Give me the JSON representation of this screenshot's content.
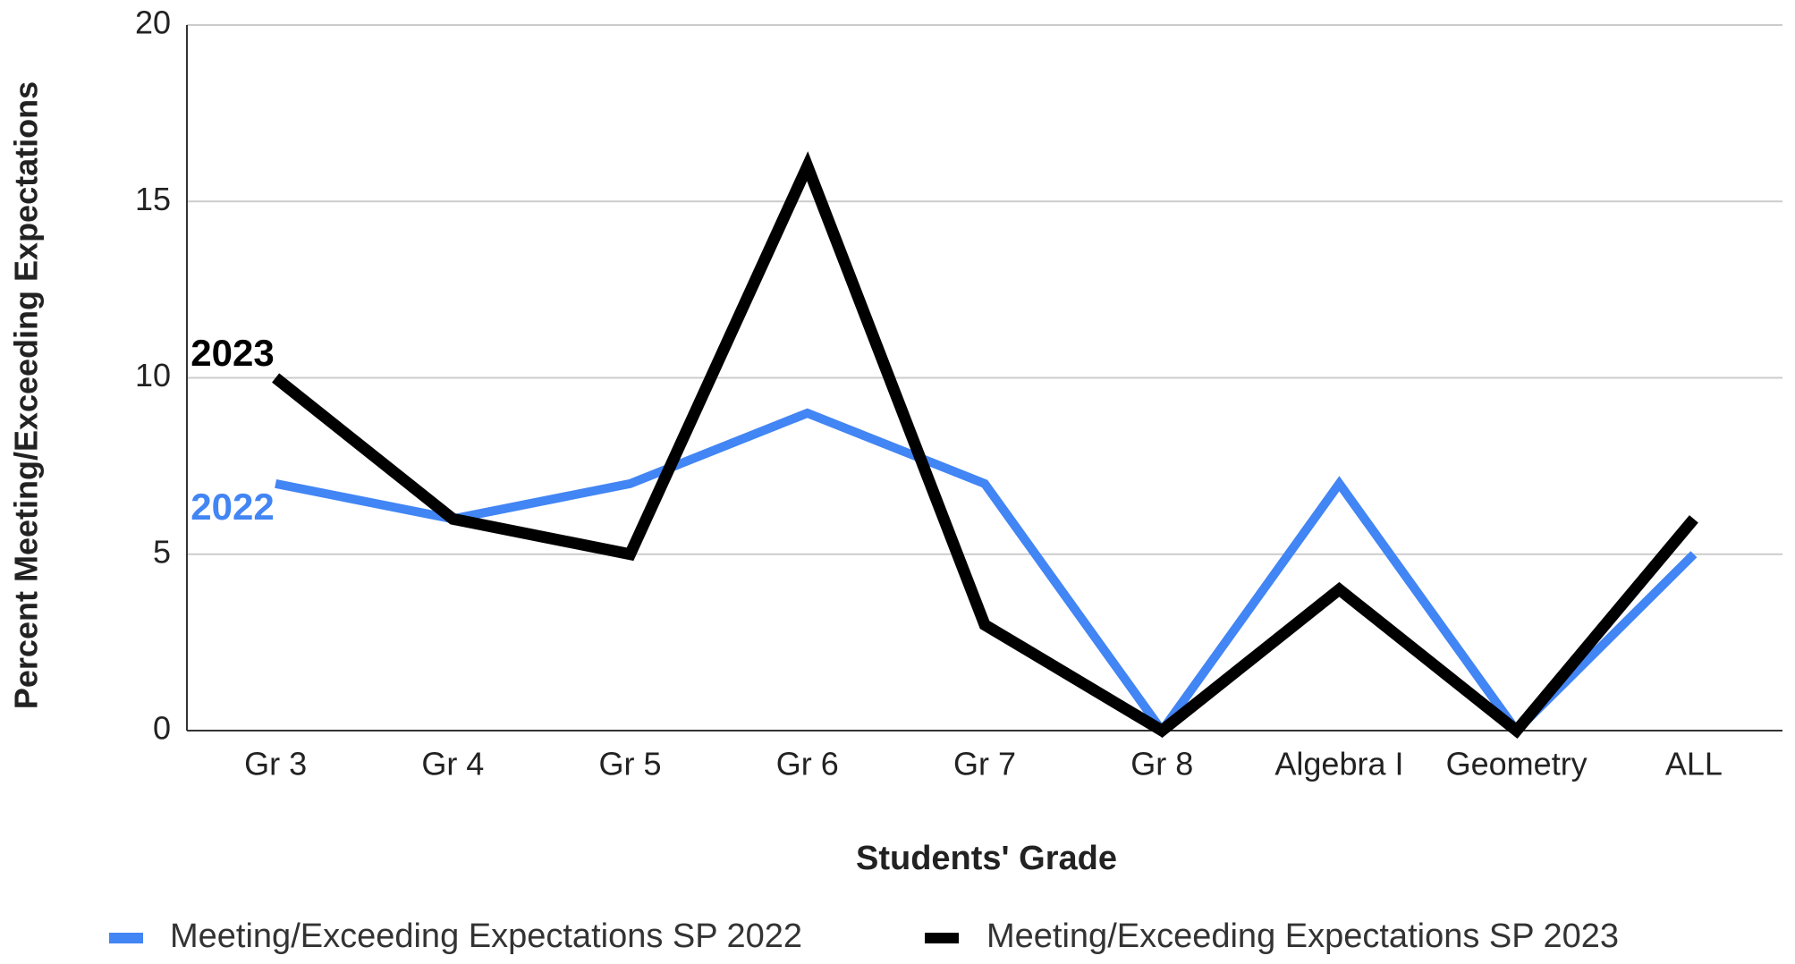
{
  "chart_data": {
    "type": "line",
    "x_label": "Students' Grade",
    "y_label": "Percent Meeting/Exceeding Expectations",
    "categories": [
      "Gr 3",
      "Gr 4",
      "Gr 5",
      "Gr 6",
      "Gr 7",
      "Gr 8",
      "Algebra I",
      "Geometry",
      "ALL"
    ],
    "series": [
      {
        "name": "Meeting/Exceeding Expectations SP 2022",
        "color": "#4285f4",
        "values": [
          7,
          6,
          7,
          9,
          7,
          0,
          7,
          0,
          5
        ]
      },
      {
        "name": "Meeting/Exceeding Expectations SP 2023",
        "color": "#000000",
        "values": [
          10,
          6,
          5,
          16,
          3,
          0,
          4,
          0,
          6
        ]
      }
    ],
    "annotations": [
      {
        "text": "2023"
      },
      {
        "text": "2022"
      }
    ],
    "ylim": [
      0,
      20
    ],
    "yticks": [
      0,
      5,
      10,
      15,
      20
    ],
    "grid": true,
    "legend": "bottom"
  }
}
